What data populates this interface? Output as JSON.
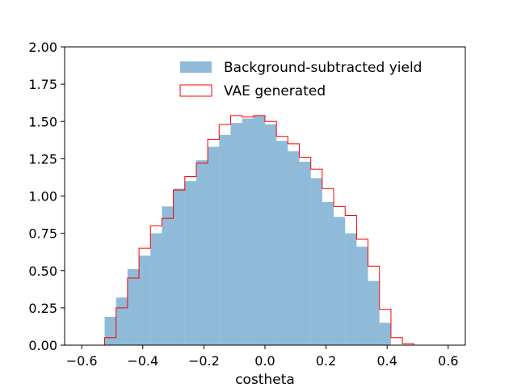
{
  "chart_data": {
    "type": "histogram",
    "xlabel": "costheta",
    "ylabel": "",
    "title": "",
    "xlim": [
      -0.656,
      0.656
    ],
    "ylim": [
      0,
      2.0
    ],
    "xticks": [
      -0.6,
      -0.4,
      -0.2,
      0.0,
      0.2,
      0.4,
      0.6
    ],
    "xtick_labels": [
      "−0.6",
      "−0.4",
      "−0.2",
      "0.0",
      "0.2",
      "0.4",
      "0.6"
    ],
    "yticks": [
      0,
      0.25,
      0.5,
      0.75,
      1.0,
      1.25,
      1.5,
      1.75,
      2.0
    ],
    "ytick_labels": [
      "0.00",
      "0.25",
      "0.50",
      "0.75",
      "1.00",
      "1.25",
      "1.50",
      "1.75",
      "2.00"
    ],
    "grid": false,
    "legend_position": "upper-right",
    "bin_edges": [
      -0.6,
      -0.5625,
      -0.525,
      -0.4875,
      -0.45,
      -0.4125,
      -0.375,
      -0.3375,
      -0.3,
      -0.2625,
      -0.225,
      -0.1875,
      -0.15,
      -0.1125,
      -0.075,
      -0.0375,
      0.0,
      0.0375,
      0.075,
      0.1125,
      0.15,
      0.1875,
      0.225,
      0.2625,
      0.3,
      0.3375,
      0.375,
      0.4125,
      0.45,
      0.4875,
      0.525,
      0.5625,
      0.6
    ],
    "series": [
      {
        "name": "Background-subtracted yield",
        "style": "filled",
        "color": "#1f77b4",
        "alpha": 0.5,
        "values": [
          0,
          0,
          0.19,
          0.32,
          0.51,
          0.6,
          0.75,
          0.93,
          1.05,
          1.1,
          1.24,
          1.33,
          1.41,
          1.49,
          1.52,
          1.54,
          1.48,
          1.37,
          1.3,
          1.23,
          1.12,
          0.96,
          0.86,
          0.75,
          0.66,
          0.43,
          0.15,
          0,
          0,
          0,
          0,
          0
        ]
      },
      {
        "name": "VAE generated",
        "style": "step",
        "color": "#ff0000",
        "values": [
          0,
          0,
          0.05,
          0.25,
          0.45,
          0.65,
          0.8,
          0.85,
          1.04,
          1.13,
          1.22,
          1.38,
          1.48,
          1.54,
          1.53,
          1.54,
          1.5,
          1.4,
          1.35,
          1.26,
          1.18,
          1.05,
          0.93,
          0.87,
          0.71,
          0.53,
          0.24,
          0.05,
          0.01,
          0,
          0,
          0
        ]
      }
    ]
  }
}
